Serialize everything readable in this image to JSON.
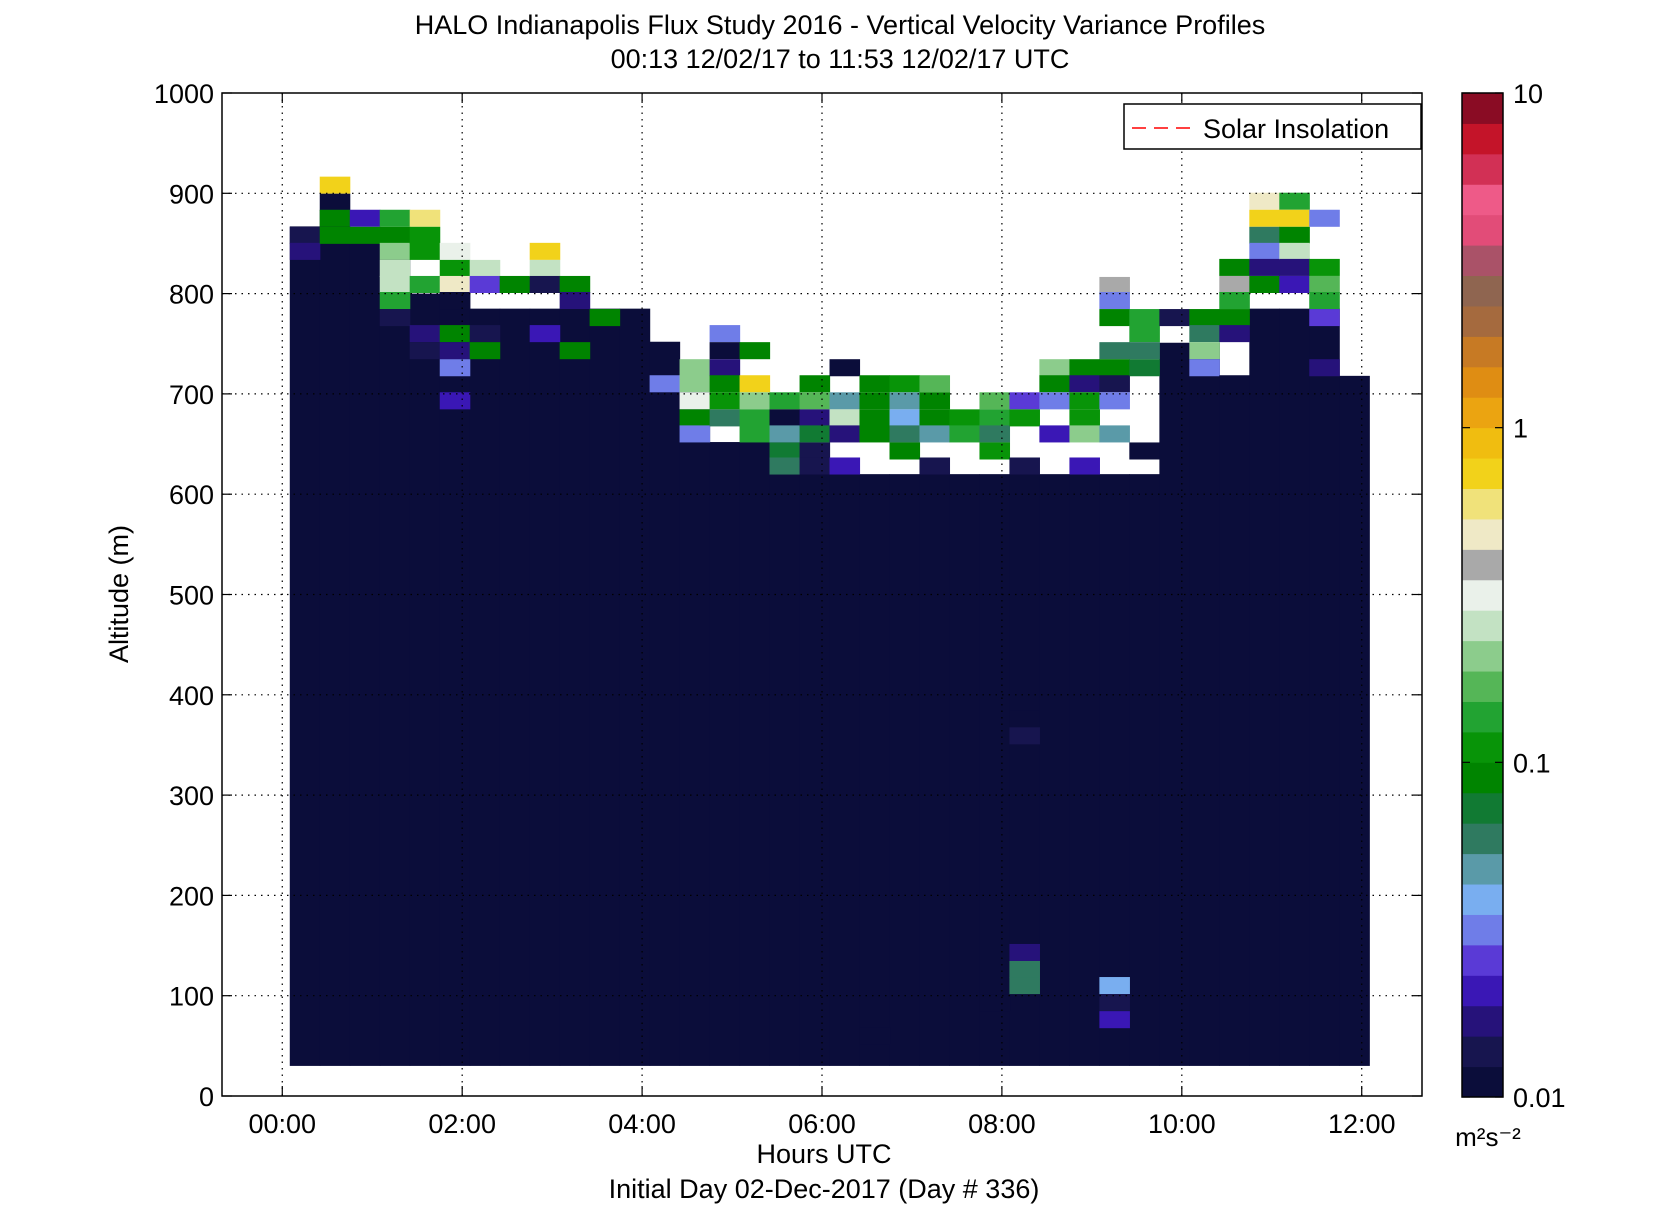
{
  "chart_data": {
    "type": "heatmap",
    "title": "HALO Indianapolis Flux Study 2016 - Vertical Velocity Variance Profiles",
    "subtitle": "00:13 12/02/17 to 11:53 12/02/17  UTC",
    "xlabel": "Hours UTC",
    "xlabel2": "Initial Day 02-Dec-2017 (Day # 336)",
    "ylabel": "Altitude (m)",
    "xlim": [
      -0.67,
      12.67
    ],
    "ylim": [
      0,
      1000
    ],
    "x_ticks": [
      0,
      2,
      4,
      6,
      8,
      10,
      12
    ],
    "x_tick_labels": [
      "00:00",
      "02:00",
      "04:00",
      "06:00",
      "08:00",
      "10:00",
      "12:00"
    ],
    "y_ticks": [
      0,
      100,
      200,
      300,
      400,
      500,
      600,
      700,
      800,
      900,
      1000
    ],
    "y_tick_labels": [
      "0",
      "100",
      "200",
      "300",
      "400",
      "500",
      "600",
      "700",
      "800",
      "900",
      "1000"
    ],
    "grid": true,
    "legend": {
      "entries": [
        "Solar Insolation"
      ],
      "placement": "top-right",
      "line_color": "#ff0000",
      "line_style": "dashed"
    },
    "colorbar": {
      "scale": "log",
      "range": [
        0.01,
        10
      ],
      "tick_values": [
        0.01,
        0.1,
        1,
        10
      ],
      "tick_labels": [
        "0.01",
        "0.1",
        "1",
        "10"
      ],
      "units_label": "m²s⁻²",
      "colors": [
        "#0b0d3a",
        "#17154f",
        "#26127a",
        "#3a17b5",
        "#5a3ad6",
        "#6f7de8",
        "#79aef0",
        "#5a9aa8",
        "#2f7a60",
        "#117a33",
        "#008400",
        "#089408",
        "#22a332",
        "#55b657",
        "#8ccc8c",
        "#c3e2c3",
        "#eaf1ea",
        "#a9a9a9",
        "#efe9c6",
        "#f0e27a",
        "#f2d21a",
        "#f0bd10",
        "#eba411",
        "#df8d13",
        "#c77a24",
        "#a56a3e",
        "#8f6550",
        "#aa5268",
        "#e24c78",
        "#ee5a88",
        "#d23055",
        "#c41429",
        "#8a0c24"
      ]
    },
    "bin_width_hours": 0.333,
    "bin_height_m": 16.6,
    "background_value": 0.01,
    "fill_cells": [
      [
        0.25,
        30,
        867
      ],
      [
        0.583,
        30,
        883
      ],
      [
        0.917,
        30,
        850
      ],
      [
        1.25,
        30,
        834
      ],
      [
        1.583,
        30,
        800
      ],
      [
        1.917,
        30,
        801
      ],
      [
        2.25,
        30,
        785
      ],
      [
        2.583,
        30,
        785
      ],
      [
        2.917,
        30,
        785
      ],
      [
        3.25,
        30,
        785
      ],
      [
        3.583,
        30,
        785
      ],
      [
        3.917,
        30,
        785
      ],
      [
        4.25,
        30,
        752
      ],
      [
        4.583,
        30,
        702
      ],
      [
        4.917,
        30,
        652
      ],
      [
        5.25,
        30,
        652
      ],
      [
        5.583,
        30,
        652
      ],
      [
        5.917,
        30,
        620
      ],
      [
        6.25,
        30,
        620
      ],
      [
        6.583,
        30,
        620
      ],
      [
        6.917,
        30,
        620
      ],
      [
        7.25,
        30,
        620
      ],
      [
        7.583,
        30,
        620
      ],
      [
        7.917,
        30,
        620
      ],
      [
        8.25,
        30,
        620
      ],
      [
        8.583,
        30,
        620
      ],
      [
        8.917,
        30,
        620
      ],
      [
        9.25,
        30,
        620
      ],
      [
        9.583,
        30,
        620
      ],
      [
        9.917,
        30,
        751
      ],
      [
        10.25,
        30,
        751
      ],
      [
        10.583,
        30,
        718
      ],
      [
        10.917,
        30,
        785
      ],
      [
        11.25,
        30,
        785
      ],
      [
        11.583,
        30,
        785
      ],
      [
        11.917,
        30,
        718
      ]
    ],
    "cells": [
      [
        0.25,
        850,
        0.013
      ],
      [
        0.25,
        834,
        0.016
      ],
      [
        0.583,
        900,
        0.7
      ],
      [
        0.583,
        883,
        0.011
      ],
      [
        0.583,
        867,
        0.09
      ],
      [
        0.583,
        850,
        0.09
      ],
      [
        0.917,
        867,
        0.021
      ],
      [
        0.917,
        850,
        0.095
      ],
      [
        1.25,
        867,
        0.15
      ],
      [
        1.25,
        850,
        0.09
      ],
      [
        1.25,
        834,
        0.2
      ],
      [
        1.25,
        817,
        0.25
      ],
      [
        1.25,
        801,
        0.25
      ],
      [
        1.25,
        785,
        0.13
      ],
      [
        1.25,
        768,
        0.014
      ],
      [
        1.583,
        867,
        0.65
      ],
      [
        1.583,
        850,
        0.12
      ],
      [
        1.583,
        834,
        0.12
      ],
      [
        1.583,
        801,
        0.15
      ],
      [
        1.583,
        752,
        0.016
      ],
      [
        1.583,
        735,
        0.013
      ],
      [
        1.917,
        834,
        0.3
      ],
      [
        1.917,
        817,
        0.12
      ],
      [
        1.917,
        801,
        0.45
      ],
      [
        1.917,
        785,
        0.011
      ],
      [
        1.917,
        752,
        0.09
      ],
      [
        1.917,
        735,
        0.016
      ],
      [
        1.917,
        718,
        0.03
      ],
      [
        1.917,
        685,
        0.022
      ],
      [
        2.25,
        817,
        0.25
      ],
      [
        2.25,
        801,
        0.028
      ],
      [
        2.25,
        752,
        0.013
      ],
      [
        2.25,
        735,
        0.085
      ],
      [
        2.583,
        801,
        0.09
      ],
      [
        2.917,
        834,
        0.7
      ],
      [
        2.917,
        817,
        0.25
      ],
      [
        2.917,
        801,
        0.013
      ],
      [
        2.917,
        752,
        0.019
      ],
      [
        3.25,
        801,
        0.085
      ],
      [
        3.25,
        785,
        0.018
      ],
      [
        3.25,
        735,
        0.09
      ],
      [
        3.583,
        768,
        0.095
      ],
      [
        4.25,
        702,
        0.032
      ],
      [
        4.583,
        718,
        0.2
      ],
      [
        4.583,
        702,
        0.22
      ],
      [
        4.583,
        685,
        0.3
      ],
      [
        4.583,
        668,
        0.09
      ],
      [
        4.583,
        652,
        0.035
      ],
      [
        4.917,
        752,
        0.035
      ],
      [
        4.917,
        735,
        0.01
      ],
      [
        4.917,
        718,
        0.018
      ],
      [
        4.917,
        702,
        0.09
      ],
      [
        4.917,
        685,
        0.1
      ],
      [
        4.917,
        668,
        0.06
      ],
      [
        5.25,
        735,
        0.085
      ],
      [
        5.25,
        702,
        0.7
      ],
      [
        5.25,
        685,
        0.2
      ],
      [
        5.25,
        668,
        0.15
      ],
      [
        5.25,
        652,
        0.15
      ],
      [
        5.583,
        685,
        0.14
      ],
      [
        5.583,
        668,
        0.01
      ],
      [
        5.583,
        652,
        0.045
      ],
      [
        5.583,
        635,
        0.07
      ],
      [
        5.583,
        620,
        0.06
      ],
      [
        5.917,
        702,
        0.085
      ],
      [
        5.917,
        685,
        0.18
      ],
      [
        5.917,
        668,
        0.018
      ],
      [
        5.917,
        652,
        0.07
      ],
      [
        5.917,
        635,
        0.013
      ],
      [
        5.917,
        620,
        0.013
      ],
      [
        6.25,
        718,
        0.011
      ],
      [
        6.25,
        685,
        0.045
      ],
      [
        6.25,
        668,
        0.25
      ],
      [
        6.25,
        652,
        0.018
      ],
      [
        6.25,
        620,
        0.022
      ],
      [
        6.583,
        702,
        0.085
      ],
      [
        6.583,
        685,
        0.085
      ],
      [
        6.583,
        668,
        0.085
      ],
      [
        6.583,
        652,
        0.085
      ],
      [
        6.917,
        702,
        0.12
      ],
      [
        6.917,
        685,
        0.05
      ],
      [
        6.917,
        668,
        0.038
      ],
      [
        6.917,
        652,
        0.06
      ],
      [
        6.917,
        635,
        0.09
      ],
      [
        7.25,
        702,
        0.18
      ],
      [
        7.25,
        685,
        0.09
      ],
      [
        7.25,
        668,
        0.085
      ],
      [
        7.25,
        652,
        0.045
      ],
      [
        7.25,
        620,
        0.015
      ],
      [
        7.583,
        668,
        0.11
      ],
      [
        7.583,
        652,
        0.15
      ],
      [
        7.917,
        685,
        0.18
      ],
      [
        7.917,
        668,
        0.13
      ],
      [
        7.917,
        652,
        0.06
      ],
      [
        7.917,
        635,
        0.1
      ],
      [
        8.25,
        685,
        0.025
      ],
      [
        8.25,
        668,
        0.1
      ],
      [
        8.25,
        620,
        0.013
      ],
      [
        8.583,
        718,
        0.2
      ],
      [
        8.583,
        702,
        0.09
      ],
      [
        8.583,
        685,
        0.035
      ],
      [
        8.583,
        652,
        0.022
      ],
      [
        8.917,
        718,
        0.09
      ],
      [
        8.917,
        702,
        0.016
      ],
      [
        8.917,
        685,
        0.12
      ],
      [
        8.917,
        668,
        0.11
      ],
      [
        8.917,
        652,
        0.2
      ],
      [
        8.917,
        620,
        0.021
      ],
      [
        9.25,
        800,
        0.4
      ],
      [
        9.25,
        785,
        0.035
      ],
      [
        9.25,
        768,
        0.09
      ],
      [
        9.25,
        735,
        0.06
      ],
      [
        9.25,
        718,
        0.09
      ],
      [
        9.25,
        702,
        0.013
      ],
      [
        9.25,
        685,
        0.03
      ],
      [
        9.25,
        652,
        0.045
      ],
      [
        9.583,
        768,
        0.15
      ],
      [
        9.583,
        752,
        0.15
      ],
      [
        9.583,
        735,
        0.06
      ],
      [
        9.583,
        718,
        0.07
      ],
      [
        9.583,
        635,
        0.012
      ],
      [
        9.917,
        768,
        0.015
      ],
      [
        10.25,
        768,
        0.085
      ],
      [
        10.25,
        752,
        0.06
      ],
      [
        10.25,
        735,
        0.2
      ],
      [
        10.25,
        718,
        0.035
      ],
      [
        10.583,
        818,
        0.09
      ],
      [
        10.583,
        801,
        0.4
      ],
      [
        10.583,
        785,
        0.15
      ],
      [
        10.583,
        768,
        0.095
      ],
      [
        10.583,
        752,
        0.018
      ],
      [
        10.583,
        702,
        0.011
      ],
      [
        10.917,
        884,
        0.45
      ],
      [
        10.917,
        867,
        0.75
      ],
      [
        10.917,
        850,
        0.06
      ],
      [
        10.917,
        834,
        0.03
      ],
      [
        10.917,
        818,
        0.016
      ],
      [
        10.917,
        801,
        0.09
      ],
      [
        11.25,
        884,
        0.13
      ],
      [
        11.25,
        867,
        0.75
      ],
      [
        11.25,
        850,
        0.085
      ],
      [
        11.25,
        834,
        0.25
      ],
      [
        11.25,
        818,
        0.018
      ],
      [
        11.25,
        801,
        0.022
      ],
      [
        11.583,
        867,
        0.032
      ],
      [
        11.583,
        818,
        0.12
      ],
      [
        11.583,
        801,
        0.18
      ],
      [
        11.583,
        785,
        0.15
      ],
      [
        11.583,
        768,
        0.026
      ],
      [
        11.583,
        718,
        0.016
      ],
      [
        8.25,
        368,
        0.011
      ],
      [
        8.25,
        351,
        0.014
      ],
      [
        8.25,
        135,
        0.016
      ],
      [
        8.25,
        118,
        0.055
      ],
      [
        8.25,
        102,
        0.065
      ],
      [
        7.917,
        85,
        0.011
      ],
      [
        9.25,
        102,
        0.04
      ],
      [
        9.25,
        85,
        0.013
      ],
      [
        9.25,
        68,
        0.019
      ],
      [
        6.583,
        52,
        0.011
      ]
    ]
  }
}
